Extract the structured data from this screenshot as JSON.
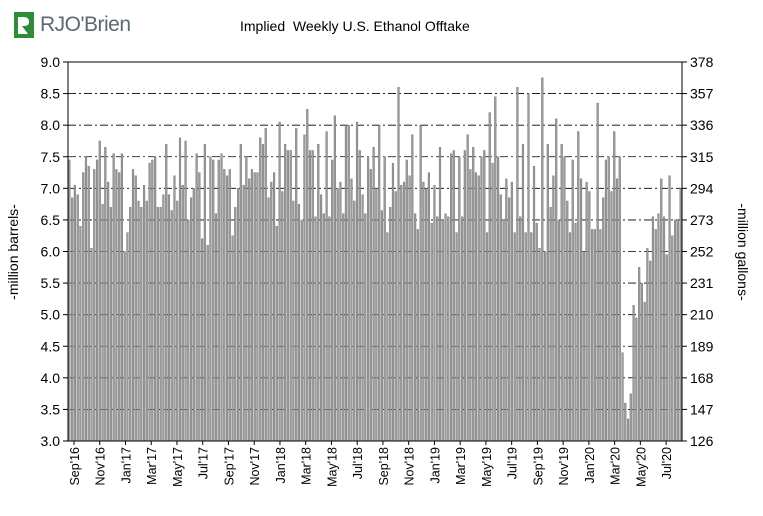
{
  "logo": {
    "text": "RJO'Brien",
    "icon": "rjo-leaf-logo",
    "color": "#2e8b3a"
  },
  "chart_data": {
    "type": "bar",
    "title": "Implied  Weekly U.S. Ethanol Offtake",
    "ylabel_left": "-million barrels-",
    "ylabel_right": "-million gallons-",
    "ylim": [
      3.0,
      9.0
    ],
    "y_ticks_left": [
      "3.0",
      "3.5",
      "4.0",
      "4.5",
      "5.0",
      "5.5",
      "6.0",
      "6.5",
      "7.0",
      "7.5",
      "8.0",
      "8.5",
      "9.0"
    ],
    "y_ticks_right": [
      "126",
      "147",
      "168",
      "189",
      "210",
      "231",
      "252",
      "273",
      "294",
      "315",
      "336",
      "357",
      "378"
    ],
    "x_ticks": [
      "Sep'16",
      "Nov'16",
      "Jan'17",
      "Mar'17",
      "May'17",
      "Jul'17",
      "Sep'17",
      "Nov'17",
      "Jan'18",
      "Mar'18",
      "May'18",
      "Jul'18",
      "Sep'18",
      "Nov'18",
      "Jan'19",
      "Mar'19",
      "May'19",
      "Jul'19",
      "Sep'19",
      "Nov'19",
      "Jan'20",
      "Mar'20",
      "May'20",
      "Jul'20"
    ],
    "grid": "horizontal dash-dot",
    "bar_color": "#9a9a9a",
    "values": [
      7.45,
      6.85,
      7.05,
      6.9,
      6.4,
      7.25,
      7.5,
      7.35,
      6.05,
      7.3,
      7.45,
      7.75,
      6.75,
      7.65,
      7.1,
      6.7,
      7.55,
      7.3,
      7.25,
      7.55,
      6.0,
      6.3,
      6.7,
      7.3,
      7.2,
      6.8,
      6.7,
      7.05,
      6.8,
      7.4,
      7.45,
      7.5,
      6.7,
      6.7,
      6.9,
      7.7,
      6.9,
      6.65,
      7.2,
      6.8,
      7.8,
      7.05,
      7.75,
      6.5,
      6.85,
      7.0,
      7.55,
      7.25,
      6.2,
      7.7,
      6.1,
      7.5,
      7.45,
      6.6,
      7.45,
      7.55,
      7.3,
      7.2,
      7.3,
      6.25,
      6.7,
      7.0,
      7.7,
      7.05,
      7.5,
      7.15,
      7.3,
      7.25,
      7.25,
      7.8,
      7.7,
      7.95,
      6.85,
      7.1,
      7.25,
      6.4,
      8.05,
      6.95,
      7.7,
      7.6,
      7.6,
      6.8,
      7.95,
      6.75,
      6.5,
      7.85,
      8.25,
      7.6,
      7.6,
      6.55,
      7.7,
      6.9,
      6.6,
      7.9,
      6.55,
      7.45,
      8.15,
      7.0,
      7.1,
      6.6,
      8.0,
      8.0,
      7.15,
      6.8,
      8.05,
      7.6,
      6.9,
      6.6,
      7.5,
      7.3,
      7.65,
      7.0,
      8.0,
      6.65,
      7.5,
      6.3,
      6.7,
      7.4,
      6.95,
      8.6,
      7.05,
      7.1,
      7.45,
      7.2,
      7.85,
      6.6,
      6.35,
      8.0,
      7.1,
      7.0,
      7.25,
      6.45,
      7.05,
      6.55,
      7.65,
      6.5,
      6.6,
      6.55,
      7.55,
      7.6,
      6.3,
      7.5,
      6.55,
      7.6,
      7.85,
      7.3,
      7.65,
      7.25,
      7.2,
      7.5,
      7.6,
      6.3,
      8.2,
      7.4,
      8.45,
      7.5,
      6.9,
      6.5,
      7.15,
      6.85,
      7.1,
      6.3,
      8.6,
      6.55,
      7.7,
      6.3,
      8.5,
      6.3,
      7.35,
      6.45,
      6.05,
      8.75,
      6.0,
      7.7,
      6.7,
      7.2,
      8.1,
      6.5,
      7.7,
      7.5,
      6.8,
      6.3,
      7.45,
      6.45,
      7.9,
      7.15,
      6.0,
      7.1,
      6.95,
      6.35,
      6.35,
      8.35,
      6.35,
      6.85,
      7.45,
      7.5,
      6.95,
      7.9,
      7.15,
      7.5,
      4.4,
      3.6,
      3.35,
      3.75,
      5.15,
      4.95,
      5.75,
      5.5,
      5.2,
      6.05,
      5.85,
      6.55,
      6.35,
      6.6,
      7.15,
      6.55,
      5.95,
      7.2,
      6.25,
      6.5,
      6.5,
      7.0
    ]
  }
}
